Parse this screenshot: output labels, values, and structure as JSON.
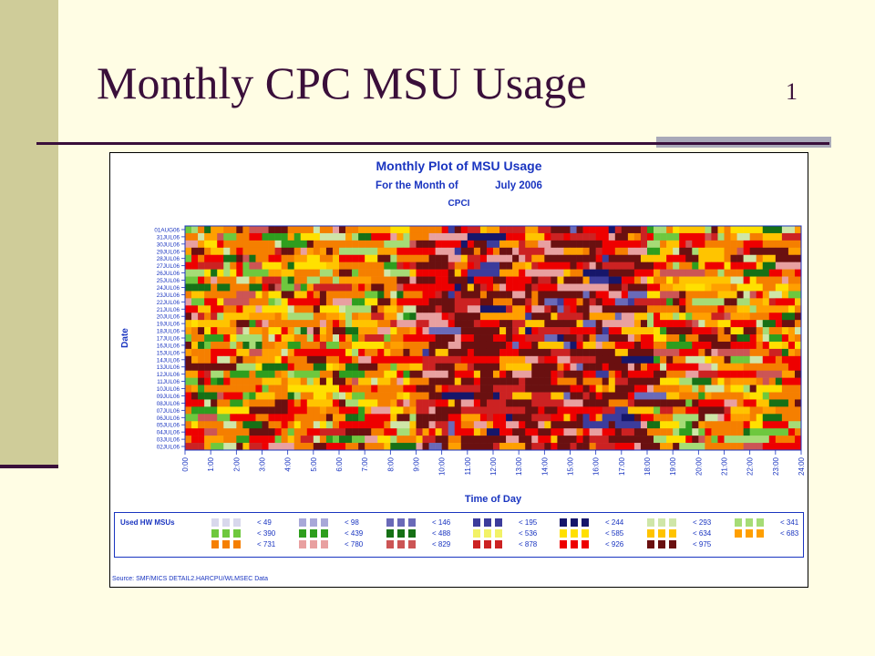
{
  "slide": {
    "title": "Monthly CPC MSU Usage",
    "number": "1"
  },
  "chart_data": {
    "type": "heatmap",
    "title": "Monthly Plot of MSU Usage",
    "subtitle": [
      "For the Month of",
      "July 2006"
    ],
    "system": "CPCI",
    "xlabel": "Time of Day",
    "ylabel": "Date",
    "x_ticks": [
      "0:00",
      "1:00",
      "2:00",
      "3:00",
      "4:00",
      "5:00",
      "6:00",
      "7:00",
      "8:00",
      "9:00",
      "10:00",
      "11:00",
      "12:00",
      "13:00",
      "14:00",
      "15:00",
      "16:00",
      "17:00",
      "18:00",
      "19:00",
      "20:00",
      "21:00",
      "22:00",
      "23:00",
      "24:00"
    ],
    "y_ticks": [
      "01AUG06",
      "31JUL06",
      "30JUL06",
      "29JUL06",
      "28JUL06",
      "27JUL06",
      "26JUL06",
      "25JUL06",
      "24JUL06",
      "23JUL06",
      "22JUL06",
      "21JUL06",
      "20JUL06",
      "19JUL06",
      "18JUL06",
      "17JUL06",
      "16JUL06",
      "15JUL06",
      "14JUL06",
      "13JUL06",
      "12JUL06",
      "11JUL06",
      "10JUL06",
      "09JUL06",
      "08JUL06",
      "07JUL06",
      "06JUL06",
      "05JUL06",
      "04JUL06",
      "03JUL06",
      "02JUL06"
    ],
    "legend_title": "Used HW MSUs",
    "legend_items": [
      {
        "label": "< 49",
        "color": "#d8d8ec"
      },
      {
        "label": "< 98",
        "color": "#a8a8d8"
      },
      {
        "label": "< 146",
        "color": "#6a6ab8"
      },
      {
        "label": "< 195",
        "color": "#3c3c9c"
      },
      {
        "label": "< 244",
        "color": "#16166a"
      },
      {
        "label": "< 293",
        "color": "#cfe6a8"
      },
      {
        "label": "< 341",
        "color": "#a6dc76"
      },
      {
        "label": "< 390",
        "color": "#6ec83e"
      },
      {
        "label": "< 439",
        "color": "#2e9e1e"
      },
      {
        "label": "< 488",
        "color": "#167016"
      },
      {
        "label": "< 536",
        "color": "#f2f266"
      },
      {
        "label": "< 585",
        "color": "#ffe000"
      },
      {
        "label": "< 634",
        "color": "#ffc400"
      },
      {
        "label": "< 683",
        "color": "#ff9f00"
      },
      {
        "label": "< 731",
        "color": "#f57f00"
      },
      {
        "label": "< 780",
        "color": "#e8a0a0"
      },
      {
        "label": "< 829",
        "color": "#cc5555"
      },
      {
        "label": "< 878",
        "color": "#cc2222"
      },
      {
        "label": "< 926",
        "color": "#ee0000"
      },
      {
        "label": "< 975",
        "color": "#6a1010"
      }
    ],
    "source": "Source: SMF/MICS DETAIL2.HARCPU/WLMSEC Data"
  }
}
